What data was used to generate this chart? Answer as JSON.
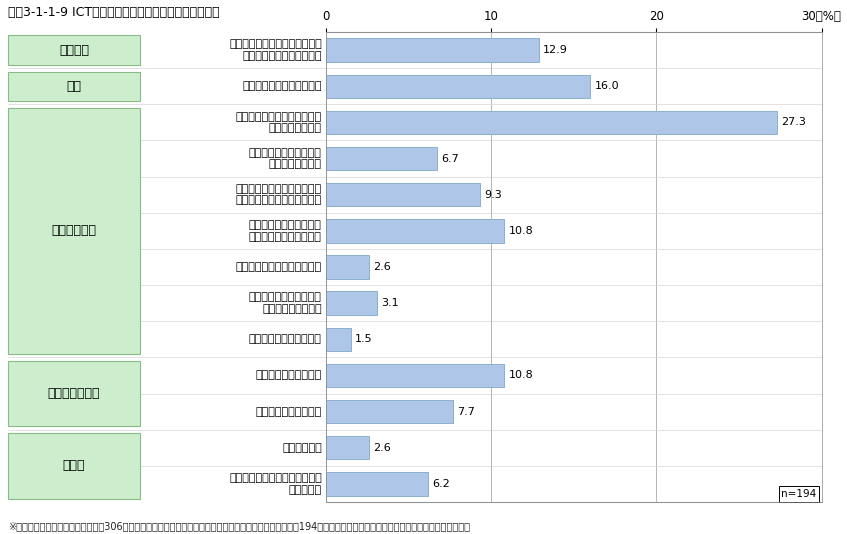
{
  "title": "図表3-1-1-9 ICT環境等に関する具体的な要望やニーズ",
  "footnote": "※　比率は、全インタビュー対象（306件）のうち自由回答により具体的な要望やニーズが得られた回答者194件を母数とした、各項目に関する内容の回答件数の割合。",
  "n_label": "n=194",
  "xlim": [
    0,
    30
  ],
  "xticks": [
    0,
    10,
    20,
    30
  ],
  "xtick_labels": [
    "0",
    "10",
    "20",
    "30(%)"
  ],
  "bar_color": "#aec6e8",
  "bar_edge_color": "#8ab0d0",
  "categories": [
    "市民に確実に情報が伝わる手段\n（戸別防災無線等）の整備",
    "放送による地域情報の提供",
    "ライフラインの一つとしての\n携帯電話の重要性",
    "代替・補完手段としての\n衛星電話の必要性",
    "通信手段（特に携帯電話）を\n確保するための電源の重要性",
    "通信インフラの可用性、\n信頼性、冗長性等の確保",
    "通信手段の迅速な復旧・整備",
    "情報の正確性、情報配信\n方法の多様性の確保",
    "情報の集約、一元管理化",
    "インターネットの効用",
    "インターネットの課題",
    "紙媒体の活用",
    "ライフラインとしての電源確保\nの重要性等"
  ],
  "values": [
    12.9,
    16.0,
    27.3,
    6.7,
    9.3,
    10.8,
    2.6,
    3.1,
    1.5,
    10.8,
    7.7,
    2.6,
    6.2
  ],
  "groups": [
    {
      "label": "防災無線",
      "rows": [
        0
      ],
      "color": "#cceecc",
      "edge_color": "#88bb88"
    },
    {
      "label": "放送",
      "rows": [
        1
      ],
      "color": "#cceecc",
      "edge_color": "#88bb88"
    },
    {
      "label": "通信インフラ",
      "rows": [
        2,
        3,
        4,
        5,
        6,
        7,
        8
      ],
      "color": "#cceecc",
      "edge_color": "#88bb88"
    },
    {
      "label": "インターネット",
      "rows": [
        9,
        10
      ],
      "color": "#cceecc",
      "edge_color": "#88bb88"
    },
    {
      "label": "その他",
      "rows": [
        11,
        12
      ],
      "color": "#cceecc",
      "edge_color": "#88bb88"
    }
  ],
  "grid_color": "#aaaaaa",
  "label_fontsize": 8,
  "value_fontsize": 8,
  "group_fontsize": 9,
  "axis_fontsize": 8.5,
  "title_fontsize": 9,
  "footnote_fontsize": 7
}
